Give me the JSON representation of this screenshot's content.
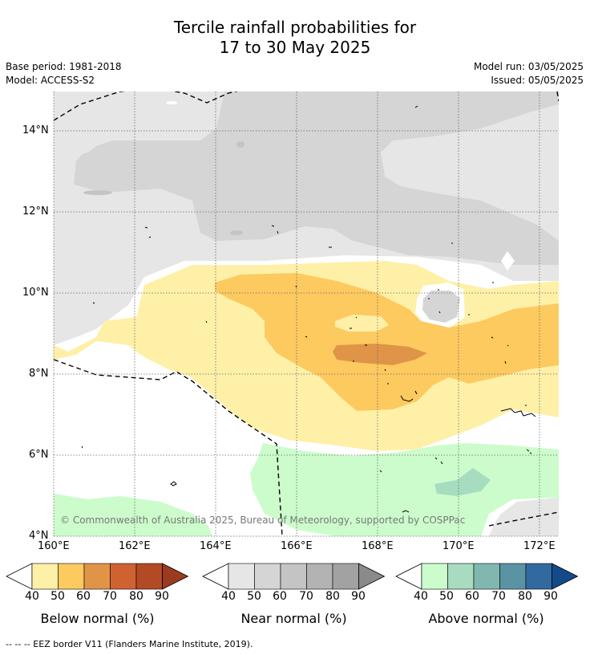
{
  "title": {
    "line1": "Tercile rainfall probabilities for",
    "line2": "17 to 30 May 2025"
  },
  "meta": {
    "base_period": "Base period: 1981-2018",
    "model": "Model: ACCESS-S2",
    "model_run": "Model run: 03/05/2025",
    "issued": "Issued: 05/05/2025"
  },
  "map": {
    "lon_ticks": [
      "160°E",
      "162°E",
      "164°E",
      "166°E",
      "168°E",
      "170°E",
      "172°E"
    ],
    "lat_ticks": [
      "14°N",
      "12°N",
      "10°N",
      "8°N",
      "6°N",
      "4°N"
    ],
    "copyright": "© Commonwealth of Australia 2025, Bureau of Meteorology, supported by COSPPac"
  },
  "colorbars": [
    {
      "label": "Below normal (%)",
      "ticks": [
        "40",
        "50",
        "60",
        "70",
        "80",
        "90"
      ],
      "colors": [
        "#fff0a8",
        "#fdca60",
        "#e09448",
        "#d06232",
        "#b24a26",
        "#9a3a1e"
      ]
    },
    {
      "label": "Near normal (%)",
      "ticks": [
        "40",
        "50",
        "60",
        "70",
        "80",
        "90"
      ],
      "colors": [
        "#e6e6e6",
        "#d5d5d5",
        "#c4c4c4",
        "#b3b3b3",
        "#a2a2a2",
        "#8a8a8a"
      ]
    },
    {
      "label": "Above normal (%)",
      "ticks": [
        "40",
        "50",
        "60",
        "70",
        "80",
        "90"
      ],
      "colors": [
        "#ccfccc",
        "#a8dcc0",
        "#80b8b0",
        "#5a94a4",
        "#326aa0",
        "#144a8a"
      ]
    }
  ],
  "footer": "--  --  -- EEZ border V11 (Flanders Marine Institute, 2019)."
}
